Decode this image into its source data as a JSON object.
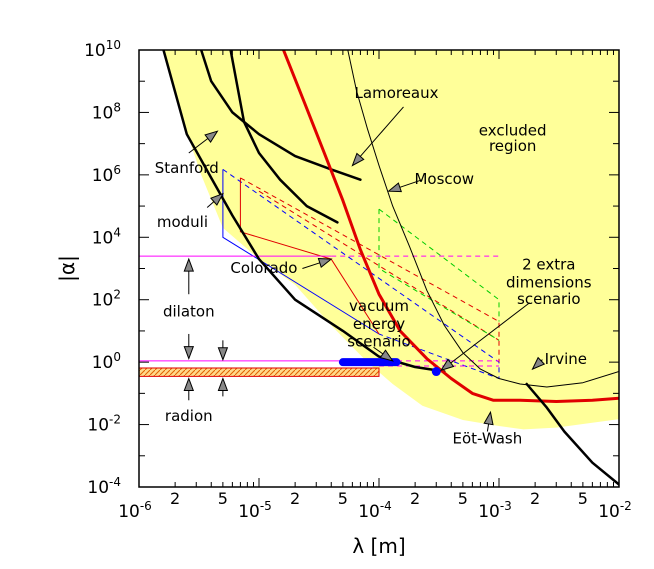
{
  "chart_data": {
    "type": "line",
    "title": "",
    "xlabel": "λ [m]",
    "ylabel": "|α|",
    "x_scale": "log",
    "y_scale": "log",
    "xlim": [
      1e-06,
      0.01
    ],
    "ylim": [
      0.0001,
      10000000000.0
    ],
    "x_ticks": [
      {
        "value": 1e-06,
        "base": "10",
        "exp": "-6"
      },
      {
        "value": 1e-05,
        "base": "10",
        "exp": "-5"
      },
      {
        "value": 0.0001,
        "base": "10",
        "exp": "-4"
      },
      {
        "value": 0.001,
        "base": "10",
        "exp": "-3"
      },
      {
        "value": 0.01,
        "base": "10",
        "exp": "-2"
      }
    ],
    "x_minor_labels": [
      {
        "value": 2e-06,
        "label": "2"
      },
      {
        "value": 5e-06,
        "label": "5"
      },
      {
        "value": 2e-05,
        "label": "2"
      },
      {
        "value": 5e-05,
        "label": "5"
      },
      {
        "value": 0.0002,
        "label": "2"
      },
      {
        "value": 0.0005,
        "label": "5"
      },
      {
        "value": 0.002,
        "label": "2"
      },
      {
        "value": 0.005,
        "label": "5"
      }
    ],
    "y_ticks": [
      {
        "value": 10000000000.0,
        "base": "10",
        "exp": "10"
      },
      {
        "value": 100000000.0,
        "base": "10",
        "exp": "8"
      },
      {
        "value": 1000000.0,
        "base": "10",
        "exp": "6"
      },
      {
        "value": 10000.0,
        "base": "10",
        "exp": "4"
      },
      {
        "value": 100.0,
        "base": "10",
        "exp": "2"
      },
      {
        "value": 1,
        "base": "10",
        "exp": "0"
      },
      {
        "value": 0.01,
        "base": "10",
        "exp": "-2"
      },
      {
        "value": 0.0001,
        "base": "10",
        "exp": "-4"
      }
    ],
    "excluded_region": {
      "color": "#ffff99",
      "boundary": [
        [
          1.6e-06,
          10000000000.0
        ],
        [
          2.2e-06,
          100000000.0
        ],
        [
          3.3e-06,
          1000000.0
        ],
        [
          5e-06,
          20000.0
        ],
        [
          1e-05,
          2000.0
        ],
        [
          2e-05,
          300.0
        ],
        [
          4e-05,
          15
        ],
        [
          8e-05,
          1
        ],
        [
          0.00013,
          0.2
        ],
        [
          0.00023,
          0.04
        ],
        [
          0.0005,
          0.014
        ],
        [
          0.001,
          0.009
        ],
        [
          0.0016,
          0.007
        ],
        [
          0.003,
          0.008
        ],
        [
          0.01,
          0.015
        ]
      ]
    },
    "series": [
      {
        "color": "#000000",
        "width": 2.5,
        "values": [
          [
            1.6e-06,
            10000000000.0
          ],
          [
            2.5e-06,
            20000000.0
          ],
          [
            4e-06,
            800000.0
          ],
          [
            6e-06,
            50000.0
          ],
          [
            1e-05,
            2000.0
          ],
          [
            2e-05,
            100.0
          ],
          [
            5e-05,
            10
          ],
          [
            0.0001,
            1.5
          ],
          [
            0.0002,
            0.7
          ],
          [
            0.00035,
            0.5
          ]
        ]
      },
      {
        "color": "#000000",
        "width": 2.5,
        "values": [
          [
            3.3e-06,
            10000000000.0
          ],
          [
            4e-06,
            1000000000.0
          ],
          [
            6e-06,
            100000000.0
          ],
          [
            1e-05,
            20000000.0
          ],
          [
            2e-05,
            4000000.0
          ],
          [
            4e-05,
            1500000.0
          ],
          [
            7e-05,
            700000.0
          ]
        ]
      },
      {
        "color": "#000000",
        "width": 2.5,
        "values": [
          [
            5.8e-06,
            10000000000.0
          ],
          [
            7.5e-06,
            50000000.0
          ],
          [
            1e-05,
            5000000.0
          ],
          [
            1.5e-05,
            700000.0
          ],
          [
            2.5e-05,
            100000.0
          ],
          [
            4.5e-05,
            30000.0
          ]
        ]
      },
      {
        "color": "#e00000",
        "width": 3,
        "values": [
          [
            1.6e-05,
            10000000000.0
          ],
          [
            2.4e-05,
            200000000.0
          ],
          [
            3.5e-05,
            5000000.0
          ],
          [
            5e-05,
            150000.0
          ],
          [
            7e-05,
            4000.0
          ],
          [
            0.0001,
            150.0
          ],
          [
            0.00015,
            10
          ],
          [
            0.00025,
            1.3
          ],
          [
            0.0004,
            0.3
          ],
          [
            0.0006,
            0.1
          ],
          [
            0.0009,
            0.06
          ],
          [
            0.0015,
            0.06
          ],
          [
            0.003,
            0.055
          ],
          [
            0.006,
            0.06
          ],
          [
            0.01,
            0.07
          ]
        ]
      },
      {
        "color": "#000000",
        "width": 1,
        "values": [
          [
            5.5e-05,
            10000000000.0
          ],
          [
            6.5e-05,
            500000000.0
          ],
          [
            8e-05,
            30000000.0
          ],
          [
            0.0001,
            2000000.0
          ],
          [
            0.00013,
            100000.0
          ],
          [
            0.00018,
            5000.0
          ],
          [
            0.00025,
            200.0
          ],
          [
            0.00035,
            15
          ],
          [
            0.0005,
            2
          ],
          [
            0.0007,
            0.6
          ],
          [
            0.001,
            0.3
          ],
          [
            0.0015,
            0.2
          ],
          [
            0.0025,
            0.16
          ],
          [
            0.005,
            0.22
          ],
          [
            0.01,
            0.5
          ]
        ]
      },
      {
        "color": "#000000",
        "width": 2.5,
        "values": [
          [
            0.0017,
            0.2
          ],
          [
            0.0025,
            0.035
          ],
          [
            0.0035,
            0.006
          ],
          [
            0.006,
            0.0006
          ],
          [
            0.01,
            0.00012
          ]
        ]
      }
    ],
    "speculative_regions": [
      {
        "name": "moduli",
        "color": "#0000ff",
        "style": "solid",
        "values": [
          [
            5e-06,
            1500000.0
          ],
          [
            5e-06,
            10000.0
          ],
          [
            0.0001,
            8
          ]
        ]
      },
      {
        "name": "moduli",
        "color": "#0000ff",
        "style": "dashed",
        "values": [
          [
            5e-06,
            1500000.0
          ],
          [
            0.001,
            1
          ],
          [
            0.001,
            0.3
          ],
          [
            0.0001,
            8
          ]
        ]
      },
      {
        "name": "moduli",
        "color": "#e00000",
        "style": "solid",
        "values": [
          [
            7e-06,
            800000.0
          ],
          [
            7e-06,
            15000.0
          ],
          [
            4e-05,
            2000.0
          ],
          [
            0.0001,
            8
          ]
        ]
      },
      {
        "name": "moduli",
        "color": "#e00000",
        "style": "dashed",
        "values": [
          [
            7e-06,
            800000.0
          ],
          [
            0.001,
            20
          ],
          [
            0.001,
            1
          ]
        ]
      },
      {
        "name": "moduli",
        "color": "#e00000",
        "style": "dashed",
        "values": [
          [
            1e-05,
            300000.0
          ],
          [
            0.001,
            5
          ]
        ]
      },
      {
        "name": "2 extra dimensions scenario",
        "color": "#00cc00",
        "style": "dashed",
        "values": [
          [
            0.0001,
            80000.0
          ],
          [
            0.0001,
            1000.0
          ],
          [
            0.001,
            5
          ]
        ]
      },
      {
        "name": "2 extra dimensions scenario",
        "color": "#00cc00",
        "style": "dashed",
        "values": [
          [
            0.0001,
            80000.0
          ],
          [
            0.001,
            100.0
          ],
          [
            0.001,
            20
          ]
        ]
      },
      {
        "name": "dilaton",
        "color": "#ff00ff",
        "style": "solid",
        "values": [
          [
            1e-06,
            2500.0
          ],
          [
            4e-05,
            2500.0
          ]
        ]
      },
      {
        "name": "dilaton",
        "color": "#ff00ff",
        "style": "dashed",
        "values": [
          [
            4e-05,
            2500.0
          ],
          [
            0.001,
            2500.0
          ]
        ]
      },
      {
        "name": "dilaton",
        "color": "#ff00ff",
        "style": "solid",
        "values": [
          [
            1e-06,
            1.1
          ],
          [
            0.0001,
            1.1
          ]
        ]
      },
      {
        "name": "dilaton",
        "color": "#ff00ff",
        "style": "dashed",
        "values": [
          [
            0.0001,
            1.1
          ],
          [
            0.001,
            1.1
          ]
        ]
      },
      {
        "name": "dilaton",
        "color": "#ff00ff",
        "style": "dashed",
        "values": [
          [
            0.0001,
            0.75
          ],
          [
            0.001,
            0.75
          ]
        ]
      },
      {
        "name": "radion",
        "color": "#e00000",
        "style": "hatch",
        "values": [
          [
            1e-06,
            0.35
          ],
          [
            0.0001,
            0.65
          ]
        ]
      }
    ],
    "vacuum_energy_bar": {
      "color": "#0000ff",
      "x": [
        5e-05,
        0.00014
      ],
      "y": 1
    },
    "point": {
      "color": "#0000ff",
      "x": 0.0003,
      "y": 0.5
    },
    "annotations": [
      {
        "text": "excluded",
        "x": 0.0013,
        "y": 25000000.0,
        "anchor": "middle"
      },
      {
        "text": "region",
        "x": 0.0013,
        "y": 8000000.0,
        "anchor": "middle"
      },
      {
        "text": "Lamoreaux",
        "x": 0.00014,
        "y": 400000000.0,
        "anchor": "middle"
      },
      {
        "text": "Moscow",
        "x": 0.00035,
        "y": 700000.0,
        "anchor": "middle"
      },
      {
        "text": "Stanford",
        "x": 2.5e-06,
        "y": 1600000.0,
        "anchor": "middle"
      },
      {
        "text": "moduli",
        "x": 2.3e-06,
        "y": 30000.0,
        "anchor": "middle"
      },
      {
        "text": "Colorado",
        "x": 1.1e-05,
        "y": 1000.0,
        "anchor": "middle"
      },
      {
        "text": "2 extra",
        "x": 0.0026,
        "y": 1300.0,
        "anchor": "middle"
      },
      {
        "text": "dimensions",
        "x": 0.0026,
        "y": 340.0,
        "anchor": "middle"
      },
      {
        "text": "scenario",
        "x": 0.0026,
        "y": 100.0,
        "anchor": "middle"
      },
      {
        "text": "vacuum",
        "x": 0.0001,
        "y": 60,
        "anchor": "middle"
      },
      {
        "text": "energy",
        "x": 0.0001,
        "y": 16,
        "anchor": "middle"
      },
      {
        "text": "scenario",
        "x": 0.0001,
        "y": 4.5,
        "anchor": "middle"
      },
      {
        "text": "dilaton",
        "x": 2.6e-06,
        "y": 40,
        "anchor": "middle"
      },
      {
        "text": "radion",
        "x": 2.6e-06,
        "y": 0.018,
        "anchor": "middle"
      },
      {
        "text": "Irvine",
        "x": 0.0024,
        "y": 1.2,
        "anchor": "start"
      },
      {
        "text": "Eöt-Wash",
        "x": 0.0008,
        "y": 0.0035,
        "anchor": "middle"
      }
    ],
    "arrows": [
      {
        "label": "Lamoreaux",
        "from": [
          0.00016,
          150000000.0
        ],
        "to": [
          6e-05,
          2000000.0
        ]
      },
      {
        "label": "Moscow",
        "from": [
          0.00023,
          700000.0
        ],
        "to": [
          0.00012,
          300000.0
        ]
      },
      {
        "label": "Stanford",
        "from": [
          2.6e-06,
          5000000.0
        ],
        "to": [
          4.5e-06,
          25000000.0
        ]
      },
      {
        "label": "moduli",
        "from": [
          3.7e-06,
          90000.0
        ],
        "to": [
          5e-06,
          250000.0
        ]
      },
      {
        "label": "Colorado",
        "from": [
          2.3e-05,
          1000.0
        ],
        "to": [
          4e-05,
          2000.0
        ]
      },
      {
        "label": "2 extra dimensions scenario",
        "from": [
          0.0018,
          80.0
        ],
        "to": [
          0.00033,
          0.55
        ]
      },
      {
        "label": "vacuum energy scenario",
        "from": [
          9e-05,
          3
        ],
        "to": [
          0.00013,
          1.1
        ]
      },
      {
        "label": "dilaton",
        "from": [
          2.6e-06,
          150
        ],
        "to": [
          2.6e-06,
          2000.0
        ]
      },
      {
        "label": "dilaton",
        "from": [
          2.6e-06,
          8
        ],
        "to": [
          2.6e-06,
          1.3
        ]
      },
      {
        "label": "dilaton",
        "from": [
          5e-06,
          5
        ],
        "to": [
          5e-06,
          1.2
        ]
      },
      {
        "label": "radion",
        "from": [
          2.6e-06,
          0.06
        ],
        "to": [
          2.6e-06,
          0.3
        ]
      },
      {
        "label": "radion",
        "from": [
          5e-06,
          0.08
        ],
        "to": [
          5e-06,
          0.3
        ]
      },
      {
        "label": "Irvine",
        "from": [
          0.0023,
          1.2
        ],
        "to": [
          0.0019,
          0.6
        ]
      },
      {
        "label": "Eöt-Wash",
        "from": [
          0.0008,
          0.006
        ],
        "to": [
          0.00085,
          0.025
        ]
      }
    ],
    "grid": false,
    "legend": "none"
  }
}
